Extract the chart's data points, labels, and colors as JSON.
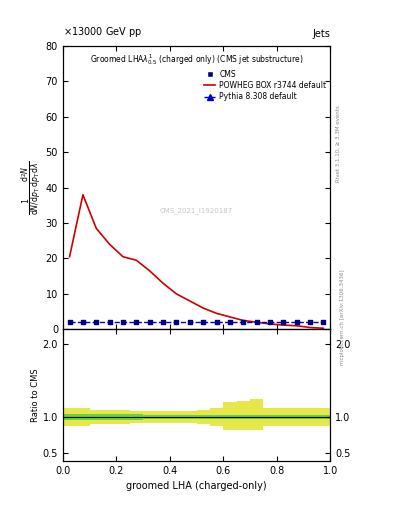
{
  "title_left": "13000 GeV pp",
  "title_right": "Jets",
  "main_title": "Groomed LHA$\\lambda^{1}_{0.5}$ (charged only) (CMS jet substructure)",
  "ylabel_ratio": "Ratio to CMS",
  "xlabel": "groomed LHA (charged-only)",
  "right_label_top": "Rivet 3.1.10, ≥ 3.3M events",
  "right_label_bottom": "mcplots.cern.ch [arXiv:1306.3436]",
  "watermark": "CMS_2021_I1920187",
  "x_red": [
    0.025,
    0.075,
    0.125,
    0.175,
    0.225,
    0.275,
    0.325,
    0.375,
    0.425,
    0.475,
    0.525,
    0.575,
    0.625,
    0.675,
    0.725,
    0.775,
    0.825,
    0.875,
    0.925,
    0.975
  ],
  "y_red": [
    20.5,
    38.0,
    28.5,
    24.0,
    20.5,
    19.5,
    16.5,
    13.0,
    10.0,
    8.0,
    6.0,
    4.5,
    3.5,
    2.5,
    2.0,
    1.5,
    1.2,
    1.0,
    0.5,
    0.3
  ],
  "x_cms": [
    0.025,
    0.075,
    0.125,
    0.175,
    0.225,
    0.275,
    0.325,
    0.375,
    0.425,
    0.475,
    0.525,
    0.575,
    0.625,
    0.675,
    0.725,
    0.775,
    0.825,
    0.875,
    0.925,
    0.975
  ],
  "y_cms": [
    2.0,
    2.0,
    2.0,
    2.0,
    2.0,
    2.0,
    2.0,
    2.0,
    2.0,
    2.0,
    2.0,
    2.0,
    2.0,
    2.0,
    2.0,
    2.0,
    2.0,
    2.0,
    2.0,
    2.0
  ],
  "x_pythia": [
    0.025,
    0.075,
    0.125,
    0.175,
    0.225,
    0.275,
    0.325,
    0.375,
    0.425,
    0.475,
    0.525,
    0.575,
    0.625,
    0.675,
    0.725,
    0.775,
    0.825,
    0.875,
    0.925,
    0.975
  ],
  "y_pythia": [
    2.0,
    2.0,
    2.0,
    2.0,
    2.0,
    2.0,
    2.0,
    2.0,
    2.0,
    2.0,
    2.0,
    2.0,
    2.0,
    2.0,
    2.0,
    2.0,
    2.0,
    2.0,
    2.0,
    2.0
  ],
  "x_ratio_yellow_edges": [
    0.0,
    0.05,
    0.1,
    0.15,
    0.2,
    0.25,
    0.3,
    0.35,
    0.4,
    0.45,
    0.5,
    0.55,
    0.6,
    0.65,
    0.7,
    0.75,
    0.8,
    0.85,
    0.9,
    0.95,
    1.0
  ],
  "y_ratio_yellow_low": [
    0.88,
    0.88,
    0.9,
    0.9,
    0.9,
    0.92,
    0.92,
    0.92,
    0.92,
    0.92,
    0.9,
    0.88,
    0.82,
    0.82,
    0.82,
    0.88,
    0.88,
    0.88,
    0.88,
    0.88,
    0.88
  ],
  "y_ratio_yellow_high": [
    1.12,
    1.12,
    1.1,
    1.1,
    1.1,
    1.08,
    1.08,
    1.08,
    1.08,
    1.08,
    1.1,
    1.12,
    1.2,
    1.22,
    1.25,
    1.12,
    1.12,
    1.12,
    1.12,
    1.12,
    1.12
  ],
  "x_ratio_green_edges": [
    0.0,
    0.1,
    0.2,
    0.3,
    0.4,
    0.5,
    0.6,
    0.7,
    0.8,
    0.9,
    1.0
  ],
  "y_ratio_green_low": [
    0.96,
    0.96,
    0.96,
    0.97,
    0.97,
    0.97,
    0.97,
    0.97,
    0.97,
    0.97,
    0.97
  ],
  "y_ratio_green_high": [
    1.04,
    1.04,
    1.04,
    1.03,
    1.03,
    1.03,
    1.03,
    1.03,
    1.03,
    1.03,
    1.03
  ],
  "ylim_main": [
    0,
    80
  ],
  "ylim_ratio": [
    0.4,
    2.2
  ],
  "xlim": [
    0,
    1
  ],
  "yticks_main": [
    0,
    10,
    20,
    30,
    40,
    50,
    60,
    70,
    80
  ],
  "yticks_ratio": [
    0.5,
    1.0,
    2.0
  ],
  "bg_color": "#ffffff",
  "red_color": "#cc0000",
  "cms_marker_color": "#000080",
  "pythia_color": "#0000cc",
  "green_color": "#33cc33",
  "yellow_color": "#dddd00"
}
